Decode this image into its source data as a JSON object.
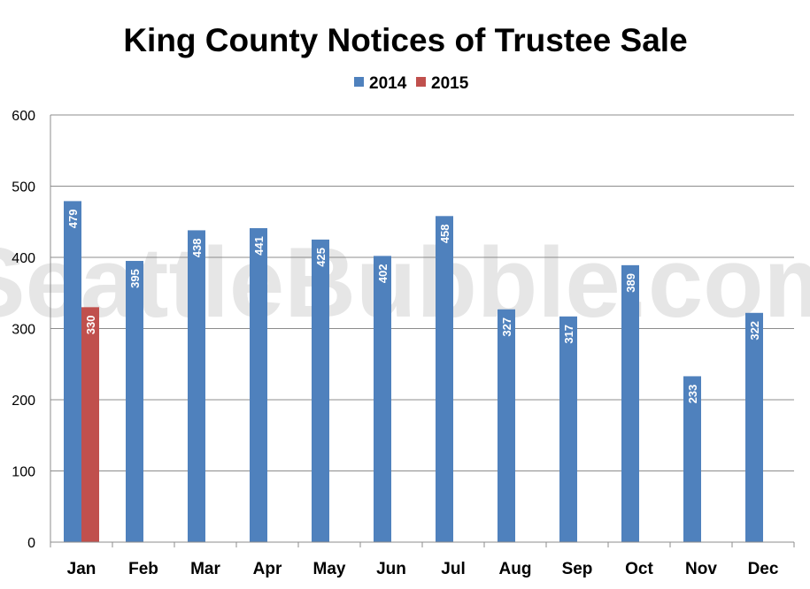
{
  "chart_data": {
    "type": "bar",
    "title": "King County Notices of Trustee Sale",
    "watermark": "SeattleBubble.com",
    "categories": [
      "Jan",
      "Feb",
      "Mar",
      "Apr",
      "May",
      "Jun",
      "Jul",
      "Aug",
      "Sep",
      "Oct",
      "Nov",
      "Dec"
    ],
    "series": [
      {
        "name": "2014",
        "color": "#4f81bd",
        "values": [
          479,
          395,
          438,
          441,
          425,
          402,
          458,
          327,
          317,
          389,
          233,
          322
        ]
      },
      {
        "name": "2015",
        "color": "#c0504d",
        "values": [
          330,
          null,
          null,
          null,
          null,
          null,
          null,
          null,
          null,
          null,
          null,
          null
        ]
      }
    ],
    "ylim": [
      0,
      600
    ],
    "yticks": [
      0,
      100,
      200,
      300,
      400,
      500,
      600
    ],
    "grid": true,
    "legend_position": "top-center",
    "data_labels": true
  }
}
